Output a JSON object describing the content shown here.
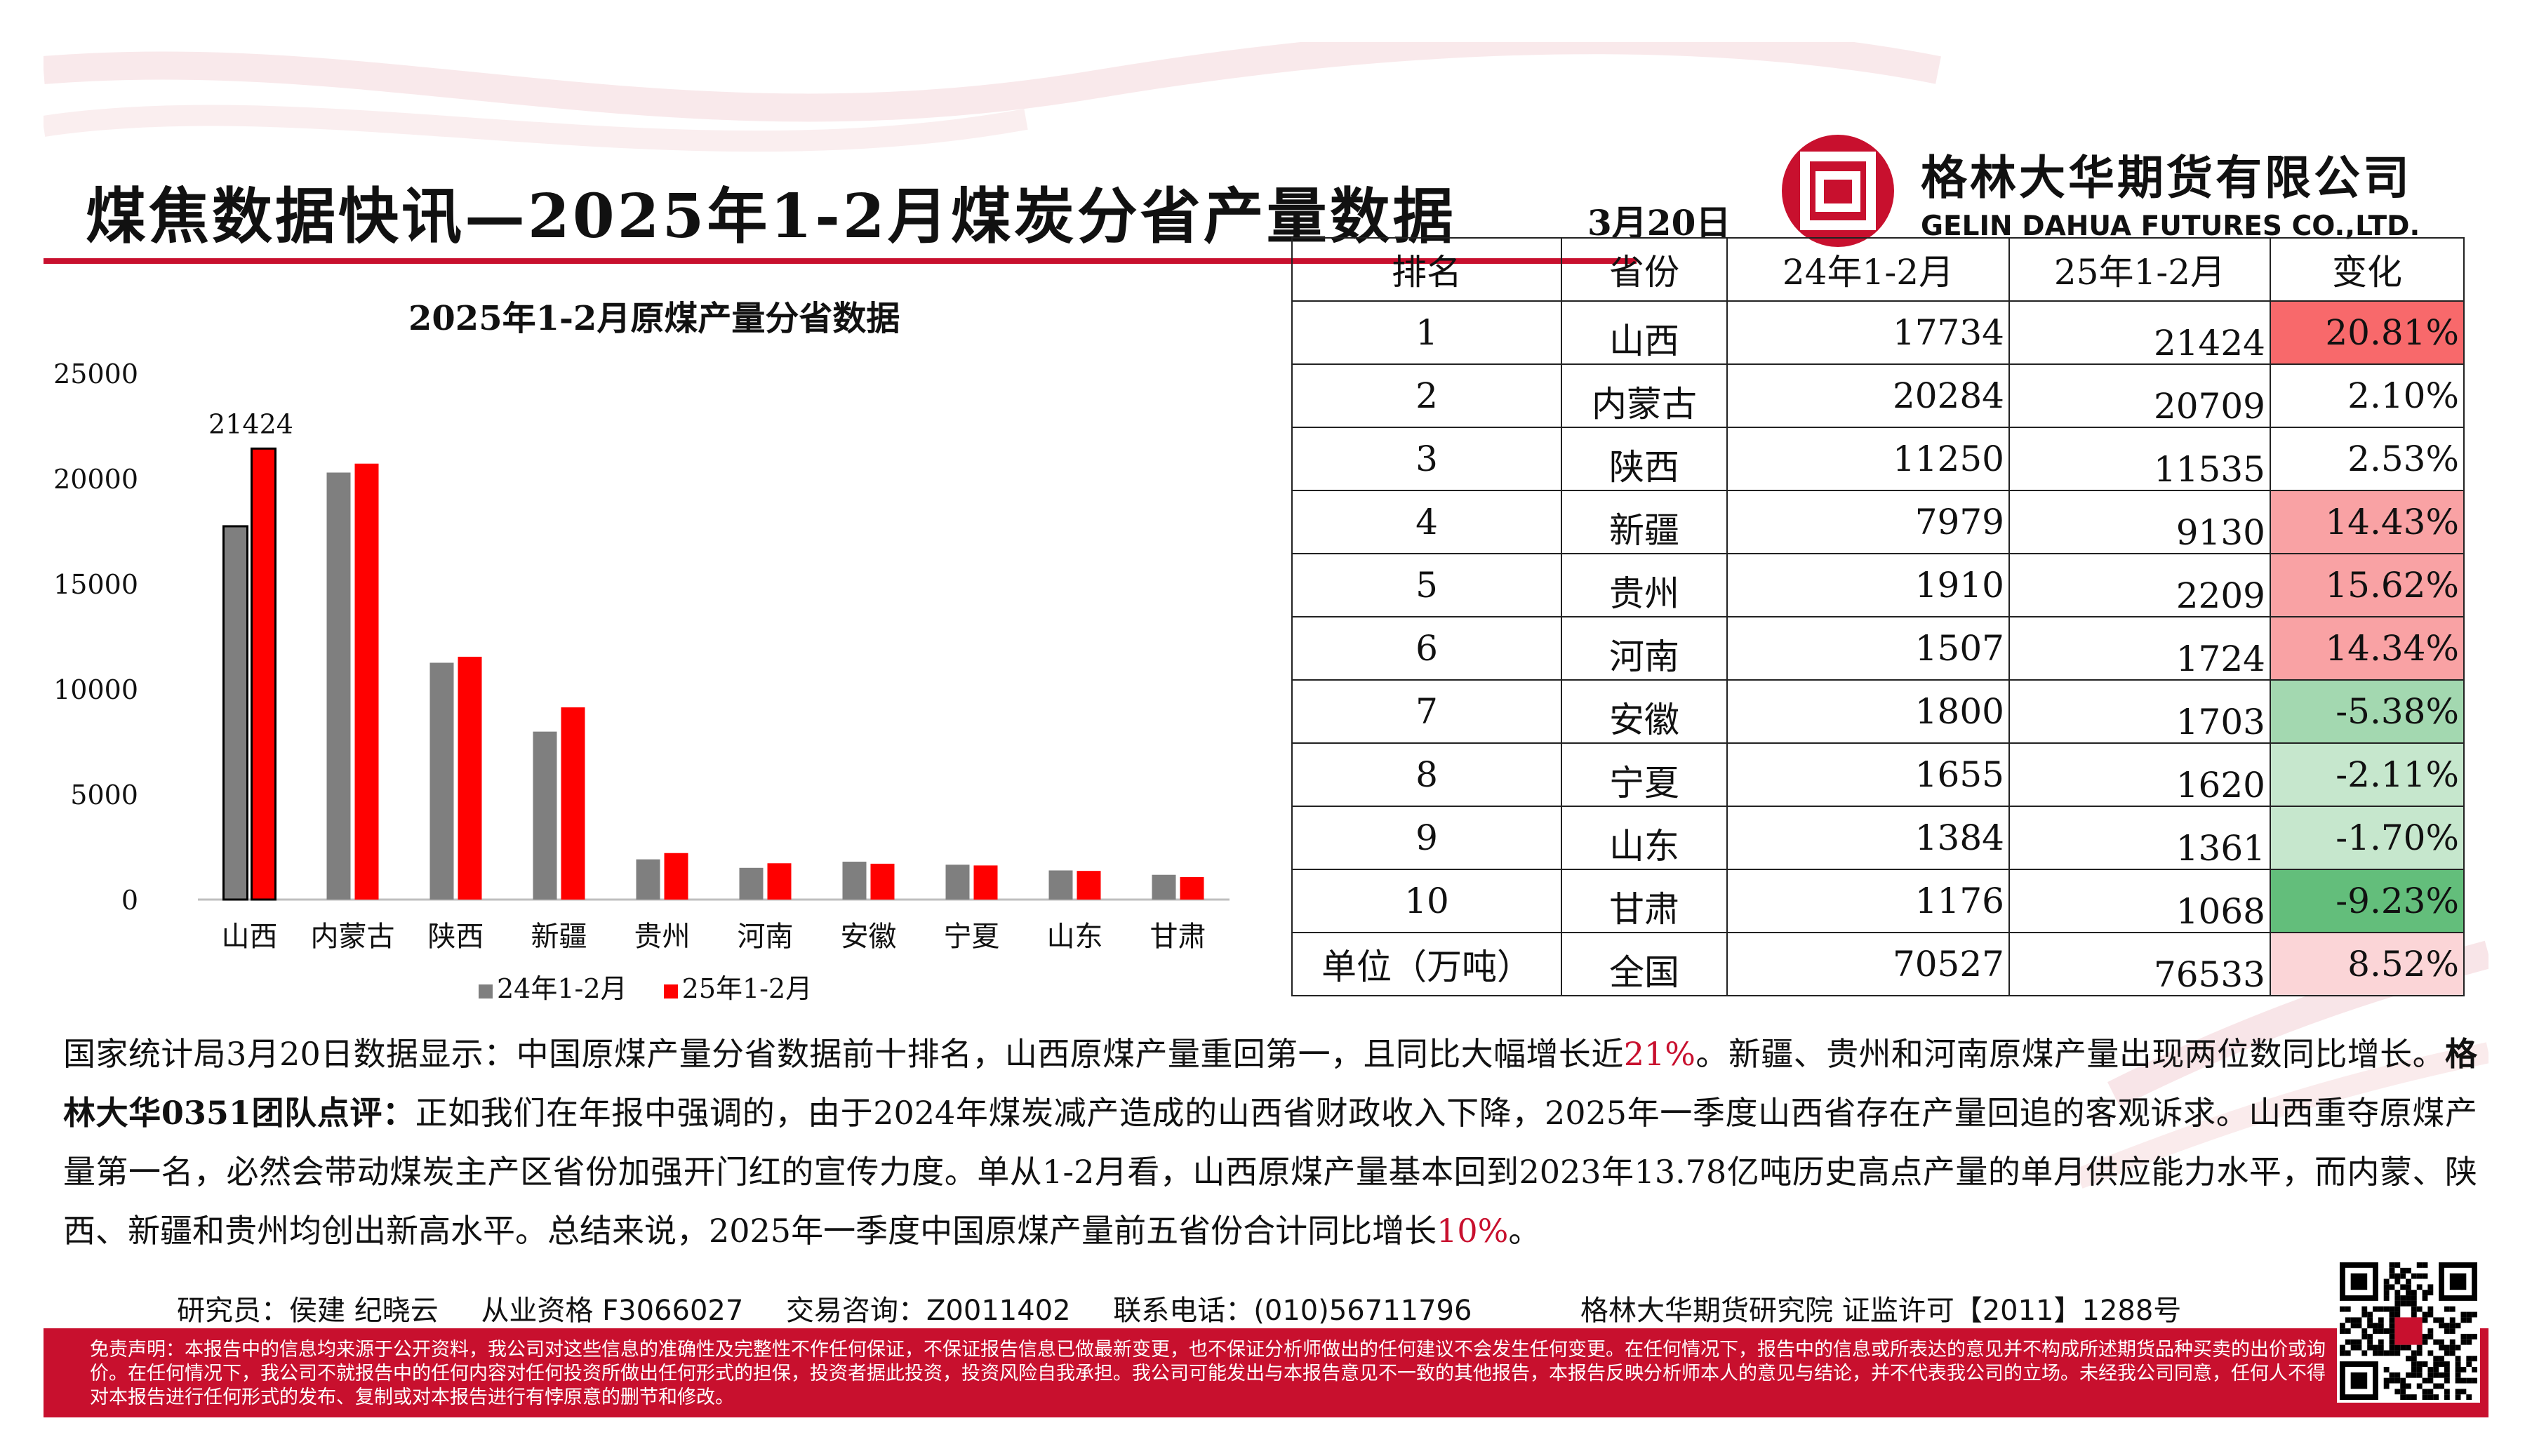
{
  "header": {
    "title": "煤焦数据快讯—2025年1-2月煤炭分省产量数据",
    "date": "3月20日",
    "company_cn": "格林大华期货有限公司",
    "company_en": "GELIN DAHUA FUTURES CO.,LTD."
  },
  "colors": {
    "brand_red": "#c8102e",
    "series_24": "#7f7f7f",
    "series_25": "#ff0000",
    "increase_strong": "#f8696b",
    "increase_light": "#fbc9cb",
    "decrease_light": "#c6e7cd",
    "decrease_strong": "#63be7b"
  },
  "chart_data": {
    "type": "bar",
    "title": "2025年1-2月原煤产量分省数据",
    "categories": [
      "山西",
      "内蒙古",
      "陕西",
      "新疆",
      "贵州",
      "河南",
      "安徽",
      "宁夏",
      "山东",
      "甘肃"
    ],
    "series": [
      {
        "name": "24年1-2月",
        "values": [
          17734,
          20284,
          11250,
          7979,
          1910,
          1507,
          1800,
          1655,
          1384,
          1176
        ]
      },
      {
        "name": "25年1-2月",
        "values": [
          21424,
          20709,
          11535,
          9130,
          2209,
          1724,
          1703,
          1620,
          1361,
          1068
        ]
      }
    ],
    "ylim": [
      0,
      25000
    ],
    "yticks": [
      "25000",
      "20000",
      "15000",
      "10000",
      "5000",
      "0"
    ],
    "data_label": "21424",
    "legend_position": "bottom",
    "grid": false
  },
  "table": {
    "headers": [
      "排名",
      "省份",
      "24年1-2月",
      "25年1-2月",
      "变化"
    ],
    "rows": [
      {
        "rank": "1",
        "province": "山西",
        "v24": "17734",
        "v25": "21424",
        "change": "20.81%",
        "level": "increase_strong"
      },
      {
        "rank": "2",
        "province": "内蒙古",
        "v24": "20284",
        "v25": "20709",
        "change": "2.10%",
        "level": "none"
      },
      {
        "rank": "3",
        "province": "陕西",
        "v24": "11250",
        "v25": "11535",
        "change": "2.53%",
        "level": "none"
      },
      {
        "rank": "4",
        "province": "新疆",
        "v24": "7979",
        "v25": "9130",
        "change": "14.43%",
        "level": "increase_mid"
      },
      {
        "rank": "5",
        "province": "贵州",
        "v24": "1910",
        "v25": "2209",
        "change": "15.62%",
        "level": "increase_mid"
      },
      {
        "rank": "6",
        "province": "河南",
        "v24": "1507",
        "v25": "1724",
        "change": "14.34%",
        "level": "increase_mid"
      },
      {
        "rank": "7",
        "province": "安徽",
        "v24": "1800",
        "v25": "1703",
        "change": "-5.38%",
        "level": "decrease_mid"
      },
      {
        "rank": "8",
        "province": "宁夏",
        "v24": "1655",
        "v25": "1620",
        "change": "-2.11%",
        "level": "decrease_light"
      },
      {
        "rank": "9",
        "province": "山东",
        "v24": "1384",
        "v25": "1361",
        "change": "-1.70%",
        "level": "decrease_light"
      },
      {
        "rank": "10",
        "province": "甘肃",
        "v24": "1176",
        "v25": "1068",
        "change": "-9.23%",
        "level": "decrease_strong"
      }
    ],
    "total": {
      "rank": "单位（万吨）",
      "province": "全国",
      "v24": "70527",
      "v25": "76533",
      "change": "8.52%",
      "level": "increase_light"
    }
  },
  "comment": {
    "p1": "国家统计局3月20日数据显示：中国原煤产量分省数据前十排名，山西原煤产量重回第一，且同比大幅增长近",
    "p1_red": "21%",
    "p2": "。新疆、贵州和河南原煤产量出现两位数同比增长。",
    "team_label": "格林大华0351团队点评：",
    "p3": "正如我们在年报中强调的，由于2024年煤炭减产造成的山西省财政收入下降，2025年一季度山西省存在产量回追的客观诉求。山西重夺原煤产量第一名，必然会带动煤炭主产区省份加强开门红的宣传力度。单从1-2月看，山西原煤产量基本回到2023年13.78亿吨历史高点产量的单月供应能力水平，而内蒙、陕西、新疆和贵州均创出新高水平。总结来说，2025年一季度中国原煤产量前五省份合计同比增长",
    "p3_red": "10%",
    "p4": "。"
  },
  "researcher": {
    "researchers": "研究员：侯建 纪晓云",
    "qualification": "从业资格 F3066027",
    "trade": "交易咨询：Z0011402",
    "phone": "联系电话：(010)56711796",
    "institute": "格林大华期货研究院 证监许可【2011】1288号"
  },
  "footer": {
    "disclaimer": "免责声明：本报告中的信息均来源于公开资料，我公司对这些信息的准确性及完整性不作任何保证，不保证报告信息已做最新变更，也不保证分析师做出的任何建议不会发生任何变更。在任何情况下，报告中的信息或所表达的意见并不构成所述期货品种买卖的出价或询价。在任何情况下，我公司不就报告中的任何内容对任何投资所做出任何形式的担保，投资者据此投资，投资风险自我承担。我公司可能发出与本报告意见不一致的其他报告，本报告反映分析师本人的意见与结论，并不代表我公司的立场。未经我公司同意，任何人不得对本报告进行任何形式的发布、复制或对本报告进行有悖原意的删节和修改。"
  }
}
